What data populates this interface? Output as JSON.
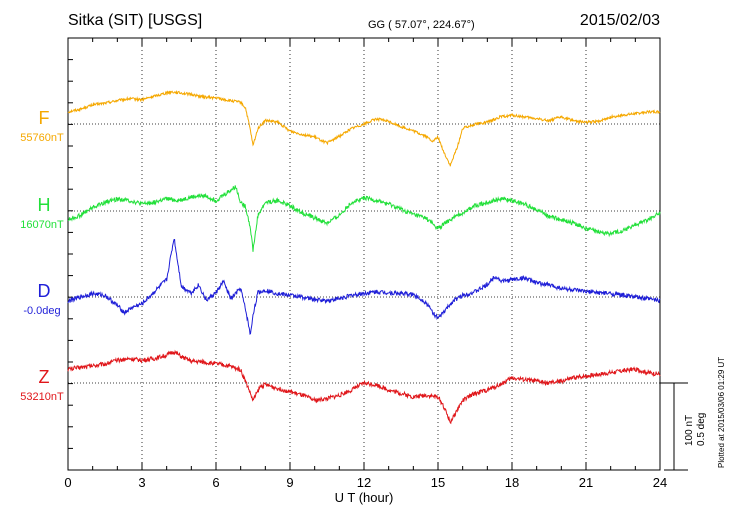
{
  "header": {
    "station": "Sitka (SIT)  [USGS]",
    "coords": "GG ( 57.07°, 224.67°)",
    "date": "2015/02/03"
  },
  "scale": {
    "nt": "100 nT",
    "deg": "0.5 deg"
  },
  "plotted": "Plotted at 2015/03/06 01:29 UT",
  "chart_data": {
    "type": "line",
    "xlabel": "U T (hour)",
    "xlim": [
      0,
      24
    ],
    "xticks": [
      0,
      3,
      6,
      9,
      12,
      15,
      18,
      21,
      24
    ],
    "grid": "dotted",
    "series": [
      {
        "name": "F",
        "baseline_label": "55760nT",
        "color": "#f5a800",
        "baseline_nT": 55760,
        "scale_per_100nT": 100,
        "x": [
          0,
          0.5,
          1,
          1.5,
          2,
          2.5,
          3,
          3.5,
          4,
          4.2,
          4.5,
          5,
          5.5,
          6,
          6.5,
          7,
          7.2,
          7.4,
          7.5,
          7.7,
          8,
          8.5,
          9,
          9.5,
          10,
          10.5,
          11,
          11.5,
          12,
          12.5,
          13,
          13.5,
          14,
          14.5,
          14.8,
          15,
          15.2,
          15.5,
          15.8,
          16,
          16.5,
          17,
          17.5,
          18,
          18.5,
          19,
          19.5,
          20,
          20.5,
          21,
          21.5,
          22,
          22.5,
          23,
          23.5,
          24
        ],
        "values": [
          14,
          17,
          22,
          24,
          27,
          29,
          28,
          32,
          36,
          37,
          36,
          34,
          31,
          30,
          27,
          25,
          18,
          -8,
          -25,
          -5,
          4,
          2,
          -8,
          -12,
          -15,
          -22,
          -14,
          -5,
          0,
          6,
          3,
          -3,
          -8,
          -14,
          -20,
          -15,
          -30,
          -48,
          -25,
          -5,
          0,
          2,
          8,
          10,
          8,
          6,
          4,
          8,
          4,
          2,
          3,
          8,
          10,
          12,
          14,
          14
        ]
      },
      {
        "name": "H",
        "baseline_label": "16070nT",
        "color": "#22e03a",
        "baseline_nT": 16070,
        "scale_per_100nT": 100,
        "x": [
          0,
          0.5,
          1,
          1.5,
          2,
          2.5,
          3,
          3.5,
          4,
          4.5,
          5,
          5.5,
          6,
          6.5,
          6.8,
          7,
          7.2,
          7.4,
          7.5,
          7.7,
          8,
          8.5,
          9,
          9.5,
          10,
          10.5,
          11,
          11.5,
          12,
          12.5,
          13,
          13.5,
          14,
          14.5,
          15,
          15.5,
          16,
          16.5,
          17,
          17.5,
          18,
          18.5,
          19,
          19.5,
          20,
          20.5,
          21,
          21.5,
          22,
          22.5,
          23,
          23.5,
          24
        ],
        "values": [
          -10,
          -5,
          4,
          10,
          14,
          12,
          8,
          10,
          14,
          12,
          16,
          18,
          12,
          22,
          28,
          10,
          5,
          -20,
          -45,
          -5,
          10,
          12,
          6,
          -2,
          -8,
          -14,
          -5,
          10,
          15,
          12,
          8,
          2,
          -4,
          -8,
          -20,
          -10,
          -2,
          6,
          10,
          14,
          12,
          8,
          2,
          -6,
          -10,
          -14,
          -20,
          -24,
          -26,
          -22,
          -16,
          -10,
          -2
        ]
      },
      {
        "name": "D",
        "baseline_label": "-0.0deg",
        "color": "#1f1fd8",
        "baseline_nT": 0,
        "scale_per_100nT": 0.5,
        "x": [
          0,
          0.5,
          1,
          1.5,
          2,
          2.3,
          2.6,
          3,
          3.5,
          4,
          4.3,
          4.6,
          5,
          5.3,
          5.6,
          6,
          6.3,
          6.6,
          7,
          7.2,
          7.4,
          7.5,
          7.7,
          8,
          8.5,
          9,
          9.5,
          10,
          10.5,
          11,
          11.5,
          12,
          12.5,
          13,
          13.5,
          14,
          14.5,
          14.8,
          15,
          15.3,
          15.6,
          16,
          16.5,
          17,
          17.3,
          17.6,
          18,
          18.5,
          19,
          19.5,
          20,
          20.5,
          21,
          21.5,
          22,
          22.5,
          23,
          23.5,
          24
        ],
        "values": [
          -5,
          0,
          4,
          2,
          -10,
          -18,
          -12,
          -8,
          6,
          20,
          68,
          12,
          5,
          14,
          -4,
          5,
          18,
          -2,
          10,
          -15,
          -44,
          -20,
          5,
          8,
          4,
          2,
          0,
          -3,
          -4,
          -2,
          2,
          4,
          6,
          5,
          4,
          3,
          -6,
          -18,
          -25,
          -15,
          -5,
          2,
          6,
          14,
          24,
          18,
          20,
          22,
          16,
          14,
          10,
          8,
          6,
          5,
          4,
          2,
          0,
          -2,
          -4
        ]
      },
      {
        "name": "Z",
        "baseline_label": "53210nT",
        "color": "#e0161a",
        "baseline_nT": 53210,
        "scale_per_100nT": 100,
        "x": [
          0,
          0.5,
          1,
          1.5,
          2,
          2.5,
          3,
          3.5,
          4,
          4.3,
          4.6,
          5,
          5.5,
          6,
          6.5,
          7,
          7.3,
          7.5,
          7.8,
          8,
          8.5,
          9,
          9.5,
          10,
          10.5,
          11,
          11.5,
          12,
          12.5,
          13,
          13.5,
          14,
          14.5,
          15,
          15.2,
          15.5,
          15.8,
          16,
          16.5,
          17,
          17.5,
          18,
          18.5,
          19,
          19.5,
          20,
          20.5,
          21,
          21.5,
          22,
          22.5,
          23,
          23.5,
          24
        ],
        "values": [
          16,
          18,
          20,
          22,
          26,
          28,
          26,
          28,
          32,
          36,
          30,
          25,
          24,
          22,
          20,
          15,
          -5,
          -20,
          -4,
          -2,
          -6,
          -10,
          -14,
          -20,
          -18,
          -14,
          -8,
          0,
          -2,
          -8,
          -12,
          -16,
          -14,
          -16,
          -25,
          -45,
          -30,
          -20,
          -12,
          -8,
          -2,
          6,
          4,
          2,
          0,
          2,
          6,
          8,
          10,
          12,
          14,
          16,
          12,
          10
        ]
      }
    ]
  }
}
